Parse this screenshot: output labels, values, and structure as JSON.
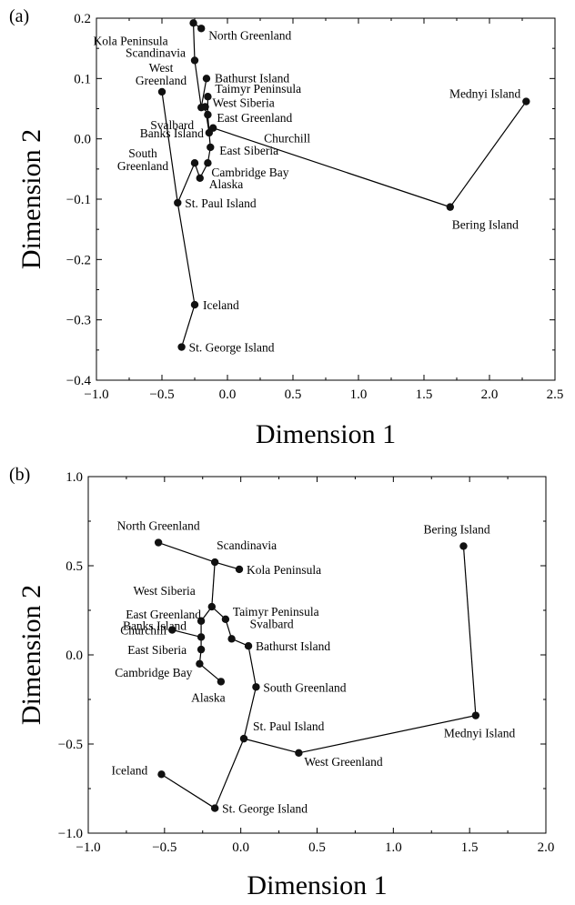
{
  "chart_data": [
    {
      "panel_label": "(a)",
      "type": "scatter",
      "xlabel": "Dimension 1",
      "ylabel": "Dimension 2",
      "xlim": [
        -1.0,
        2.5
      ],
      "ylim": [
        -0.4,
        0.2
      ],
      "xticks": [
        "−1.0",
        "−0.5",
        "0.0",
        "0.5",
        "1.0",
        "1.5",
        "2.0",
        "2.5"
      ],
      "xtick_values": [
        -1.0,
        -0.5,
        0.0,
        0.5,
        1.0,
        1.5,
        2.0,
        2.5
      ],
      "yticks": [
        "0.2",
        "0.1",
        "0.0",
        "−0.1",
        "−0.2",
        "−0.3",
        "−0.4"
      ],
      "ytick_values": [
        0.2,
        0.1,
        0.0,
        -0.1,
        -0.2,
        -0.3,
        -0.4
      ],
      "points": [
        {
          "name": "Kola Peninsula",
          "x": -0.26,
          "y": 0.192
        },
        {
          "name": "North Greenland",
          "x": -0.2,
          "y": 0.183
        },
        {
          "name": "Scandinavia",
          "x": -0.25,
          "y": 0.13
        },
        {
          "name": "West Greenland",
          "x": -0.5,
          "y": 0.078
        },
        {
          "name": "Bathurst Island",
          "x": -0.16,
          "y": 0.1
        },
        {
          "name": "Taimyr Peninsula",
          "x": -0.15,
          "y": 0.07
        },
        {
          "name": "West Siberia",
          "x": -0.17,
          "y": 0.053
        },
        {
          "name": "Svalbard",
          "x": -0.2,
          "y": 0.052
        },
        {
          "name": "East Greenland",
          "x": -0.15,
          "y": 0.04
        },
        {
          "name": "Churchill",
          "x": -0.11,
          "y": 0.018
        },
        {
          "name": "Banks Island",
          "x": -0.14,
          "y": 0.01
        },
        {
          "name": "East Siberia",
          "x": -0.13,
          "y": -0.014
        },
        {
          "name": "South Greenland",
          "x": -0.25,
          "y": -0.04
        },
        {
          "name": "Cambridge Bay",
          "x": -0.15,
          "y": -0.04
        },
        {
          "name": "Alaska",
          "x": -0.21,
          "y": -0.065
        },
        {
          "name": "St. Paul Island",
          "x": -0.38,
          "y": -0.106
        },
        {
          "name": "Bering Island",
          "x": 1.7,
          "y": -0.113
        },
        {
          "name": "Mednyi Island",
          "x": 2.28,
          "y": 0.062
        },
        {
          "name": "Iceland",
          "x": -0.25,
          "y": -0.275
        },
        {
          "name": "St. George Island",
          "x": -0.35,
          "y": -0.345
        }
      ],
      "path": [
        "Kola Peninsula",
        "Scandinavia",
        "Svalbard",
        "West Siberia",
        "Banks Island",
        "Churchill",
        "Bering Island",
        "Mednyi Island"
      ],
      "extra_segments": [
        [
          "Kola Peninsula",
          "North Greenland"
        ],
        [
          "West Greenland",
          "St. Paul Island"
        ],
        [
          "Bathurst Island",
          "Svalbard"
        ],
        [
          "Taimyr Peninsula",
          "East Greenland"
        ],
        [
          "East Greenland",
          "Banks Island"
        ],
        [
          "Banks Island",
          "East Siberia"
        ],
        [
          "East Siberia",
          "Cambridge Bay"
        ],
        [
          "Cambridge Bay",
          "Alaska"
        ],
        [
          "Alaska",
          "South Greenland"
        ],
        [
          "South Greenland",
          "St. Paul Island"
        ],
        [
          "St. Paul Island",
          "Iceland"
        ],
        [
          "Iceland",
          "St. George Island"
        ]
      ]
    },
    {
      "panel_label": "(b)",
      "type": "scatter",
      "xlabel": "Dimension 1",
      "ylabel": "Dimension 2",
      "xlim": [
        -1.0,
        2.0
      ],
      "ylim": [
        -1.0,
        1.0
      ],
      "xticks": [
        "−1.0",
        "−0.5",
        "0.0",
        "0.5",
        "1.0",
        "1.5",
        "2.0"
      ],
      "xtick_values": [
        -1.0,
        -0.5,
        0.0,
        0.5,
        1.0,
        1.5,
        2.0
      ],
      "yticks": [
        "1.0",
        "0.5",
        "0.0",
        "−0.5",
        "−1.0"
      ],
      "ytick_values": [
        1.0,
        0.5,
        0.0,
        -0.5,
        -1.0
      ],
      "points": [
        {
          "name": "North Greenland",
          "x": -0.54,
          "y": 0.63
        },
        {
          "name": "Scandinavia",
          "x": -0.17,
          "y": 0.52
        },
        {
          "name": "Kola Peninsula",
          "x": -0.01,
          "y": 0.48
        },
        {
          "name": "West Siberia",
          "x": -0.19,
          "y": 0.27
        },
        {
          "name": "East Greenland",
          "x": -0.26,
          "y": 0.19
        },
        {
          "name": "Taimyr Peninsula",
          "x": -0.1,
          "y": 0.2
        },
        {
          "name": "Banks Island",
          "x": -0.26,
          "y": 0.1
        },
        {
          "name": "Churchill",
          "x": -0.45,
          "y": 0.14
        },
        {
          "name": "Svalbard",
          "x": -0.06,
          "y": 0.09
        },
        {
          "name": "Bathurst Island",
          "x": 0.05,
          "y": 0.05
        },
        {
          "name": "East Siberia",
          "x": -0.26,
          "y": 0.03
        },
        {
          "name": "Cambridge Bay",
          "x": -0.27,
          "y": -0.05
        },
        {
          "name": "Alaska",
          "x": -0.13,
          "y": -0.15
        },
        {
          "name": "South Greenland",
          "x": 0.1,
          "y": -0.18
        },
        {
          "name": "St. Paul Island",
          "x": 0.02,
          "y": -0.47
        },
        {
          "name": "West Greenland",
          "x": 0.38,
          "y": -0.55
        },
        {
          "name": "Mednyi Island",
          "x": 1.54,
          "y": -0.34
        },
        {
          "name": "Bering Island",
          "x": 1.46,
          "y": 0.61
        },
        {
          "name": "Iceland",
          "x": -0.52,
          "y": -0.67
        },
        {
          "name": "St. George Island",
          "x": -0.17,
          "y": -0.86
        }
      ],
      "path": [
        "North Greenland",
        "Scandinavia",
        "West Siberia",
        "East Greenland",
        "Banks Island",
        "East Siberia",
        "Cambridge Bay",
        "Alaska"
      ],
      "extra_segments": [
        [
          "Scandinavia",
          "Kola Peninsula"
        ],
        [
          "West Siberia",
          "Taimyr Peninsula"
        ],
        [
          "Taimyr Peninsula",
          "Svalbard"
        ],
        [
          "Svalbard",
          "Bathurst Island"
        ],
        [
          "Bathurst Island",
          "South Greenland"
        ],
        [
          "South Greenland",
          "St. Paul Island"
        ],
        [
          "St. Paul Island",
          "West Greenland"
        ],
        [
          "West Greenland",
          "Mednyi Island"
        ],
        [
          "Mednyi Island",
          "Bering Island"
        ],
        [
          "Banks Island",
          "Churchill"
        ],
        [
          "St. Paul Island",
          "St. George Island"
        ],
        [
          "St. George Island",
          "Iceland"
        ]
      ]
    }
  ]
}
